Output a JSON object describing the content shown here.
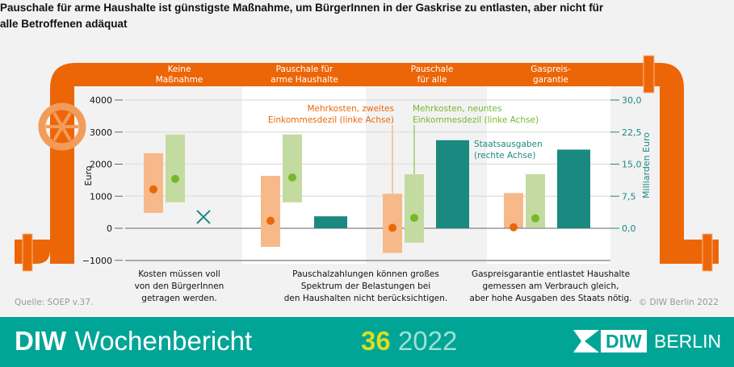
{
  "title": "Pauschale für arme Haushalte ist günstigste Maßnahme, um BürgerInnen in der Gaskrise zu entlasten, aber nicht für alle Betroffenen adäquat",
  "colors": {
    "pipe": "#ec6608",
    "valve": "#f39c5a",
    "orange": "#ec6608",
    "orange_light": "#f7b98a",
    "green": "#76b82a",
    "green_light": "#c3dba0",
    "teal": "#1a8a80",
    "footer": "#00a596",
    "year_accent": "#d8df20"
  },
  "chart_data": {
    "type": "bar",
    "categories": [
      "Keine\nMaßnahme",
      "Pauschale für\narme Haushalte",
      "Pauschale\nfür alle",
      "Gaspreis-\ngarantie"
    ],
    "left_axis": {
      "label": "Euro",
      "ylim": [
        -1000,
        4000
      ],
      "ticks": [
        "4000",
        "3000",
        "2000",
        "1000",
        "0",
        "−1000"
      ]
    },
    "right_axis": {
      "label": "Milliarden Euro",
      "ylim": [
        -7.5,
        30
      ],
      "ticks": [
        "30,0",
        "22,5",
        "15,0",
        "7,5",
        "0,0"
      ]
    },
    "series": [
      {
        "name": "Mehrkosten, zweites Einkommesdezil (linke Achse)",
        "kind": "range-point",
        "ranges": [
          [
            480,
            2340
          ],
          [
            -580,
            1635
          ],
          [
            -770,
            1075
          ],
          [
            15,
            1100
          ]
        ],
        "points": [
          1215,
          235,
          15,
          30
        ]
      },
      {
        "name": "Mehrkosten, neuntes Einkommesdezil (linke Achse)",
        "kind": "range-point",
        "ranges": [
          [
            810,
            2925
          ],
          [
            810,
            2925
          ],
          [
            -450,
            1685
          ],
          [
            20,
            1685
          ]
        ],
        "points": [
          1540,
          1585,
          325,
          310
        ]
      },
      {
        "name": "Staatsausgaben (rechte Achse)",
        "kind": "bar",
        "values": [
          null,
          2.8,
          20.6,
          18.4
        ],
        "none_marker": "x"
      }
    ],
    "grid": true
  },
  "groups": [
    {
      "header_1": "Keine",
      "header_2": "Maßnahme",
      "caption": [
        "Kosten müssen voll",
        "von den BürgerInnen",
        "getragen werden."
      ]
    },
    {
      "header_1": "Pauschale für",
      "header_2": "arme Haushalte",
      "caption": [
        "Pauschalzahlungen können großes",
        "Spektrum der Belastungen bei",
        "den Haushalten nicht berücksichtigen."
      ]
    },
    {
      "header_1": "Pauschale",
      "header_2": "für alle",
      "caption": [
        "",
        "",
        " "
      ]
    },
    {
      "header_1": "Gaspreis-",
      "header_2": "garantie",
      "caption": [
        "Gaspreisgarantie entlastet Haushalte",
        "gemessen am Verbrauch gleich,",
        "aber hohe Ausgaben des Staats nötig."
      ]
    }
  ],
  "annotations": {
    "orange_1": "Mehrkosten, zweites",
    "orange_2": "Einkommesdezil (linke Achse)",
    "green_1": "Mehrkosten, neuntes",
    "green_2": "Einkommesdezil (linke Achse)",
    "teal_1": "Staatsausgaben",
    "teal_2": "(rechte Achse)"
  },
  "source": "Quelle: SOEP v.37.",
  "copyright": "© DIW Berlin 2022",
  "footer": {
    "brand_bold": "DIW",
    "brand_light": "Wochenbericht",
    "issue": "36",
    "year": "2022",
    "logo_1": "DIW",
    "logo_2": "BERLIN"
  }
}
